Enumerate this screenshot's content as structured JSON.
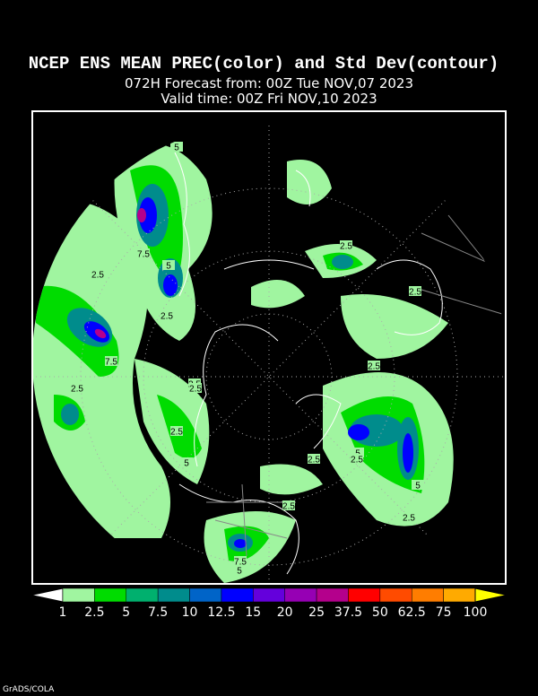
{
  "header": {
    "title": "NCEP ENS MEAN PREC(color) and Std Dev(contour)",
    "forecast_line": "072H Forecast from: 00Z Tue NOV,07 2023",
    "valid_line": "Valid time: 00Z Fri NOV,10 2023"
  },
  "map": {
    "contour_labels": [
      "5",
      "7.5",
      "5",
      "2.5",
      "2.5",
      "7.5",
      "2.5",
      "2.5",
      "2.5",
      "2.5",
      "5",
      "2.5",
      "2.5",
      "2.5",
      "5",
      "5",
      "2.5",
      "2.5",
      "2.5",
      "7.5",
      "5",
      "2.5"
    ]
  },
  "colorbar": {
    "levels": [
      1,
      2.5,
      5,
      7.5,
      10,
      12.5,
      15,
      20,
      25,
      37.5,
      50,
      62.5,
      75,
      100
    ],
    "colors": [
      "#a0f5a0",
      "#00dc00",
      "#00b06e",
      "#008c8c",
      "#0064c8",
      "#0000ff",
      "#6400dc",
      "#9600b4",
      "#b4008c",
      "#ff0000",
      "#ff4b00",
      "#ff7d00",
      "#ffaa00"
    ],
    "low_color": "#ffffff",
    "high_color": "#ffff00"
  },
  "footer": {
    "credit": "GrADS/COLA"
  }
}
